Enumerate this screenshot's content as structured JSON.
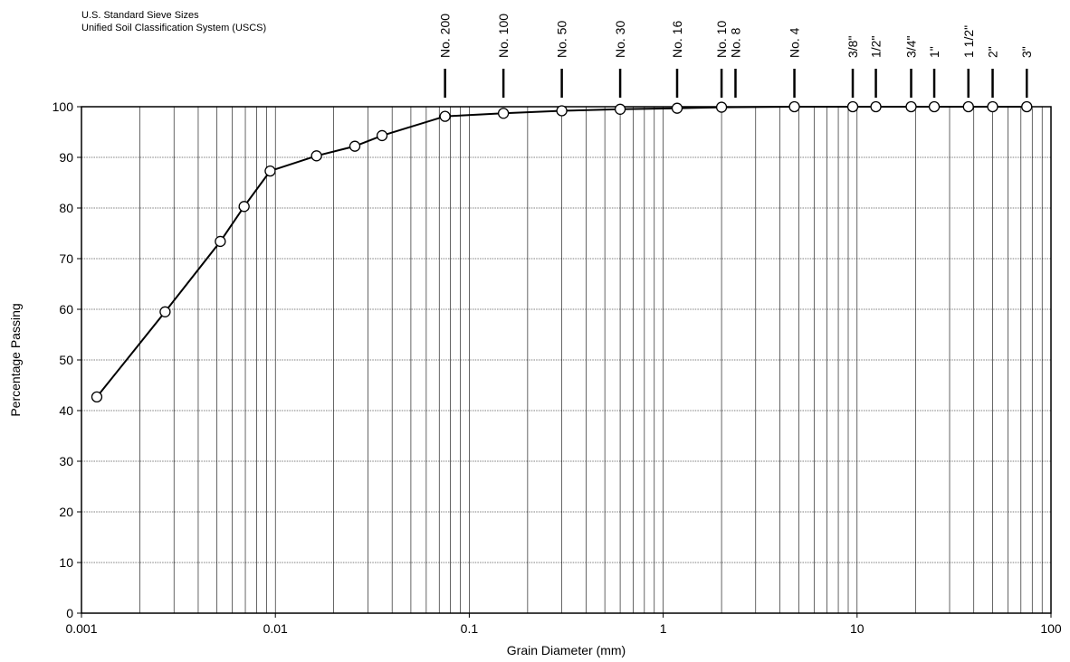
{
  "header": {
    "line1": "U.S. Standard Sieve Sizes",
    "line2": "Unified Soil Classification System (USCS)"
  },
  "chart_data": {
    "type": "line",
    "title": "",
    "xlabel": "Grain Diameter (mm)",
    "ylabel": "Percentage Passing",
    "x_scale": "log",
    "xlim": [
      0.001,
      100
    ],
    "ylim": [
      0,
      100
    ],
    "x_ticks": [
      {
        "value": 0.001,
        "label": "0.001"
      },
      {
        "value": 0.01,
        "label": "0.01"
      },
      {
        "value": 0.1,
        "label": "0.1"
      },
      {
        "value": 1,
        "label": "1"
      },
      {
        "value": 10,
        "label": "10"
      },
      {
        "value": 100,
        "label": "100"
      }
    ],
    "y_ticks": [
      0,
      10,
      20,
      30,
      40,
      50,
      60,
      70,
      80,
      90,
      100
    ],
    "grid": {
      "x_minor": true,
      "y_major": true
    },
    "marker": "open-circle",
    "line_color": "#000000",
    "series": [
      {
        "x": [
          0.0012,
          0.0027,
          0.0052,
          0.0069,
          0.0094,
          0.0163,
          0.0257,
          0.0355,
          0.075,
          0.15,
          0.3,
          0.6,
          1.18,
          2.0,
          4.75,
          9.5,
          12.5,
          19.0,
          25.0,
          37.5,
          50.0,
          75.0
        ],
        "y": [
          42.7,
          59.5,
          73.4,
          80.3,
          87.3,
          90.3,
          92.2,
          94.3,
          98.1,
          98.7,
          99.2,
          99.5,
          99.7,
          99.9,
          100,
          100,
          100,
          100,
          100,
          100,
          100,
          100
        ]
      }
    ],
    "sieves": [
      {
        "label": "No. 200",
        "size": 0.075
      },
      {
        "label": "No. 100",
        "size": 0.15
      },
      {
        "label": "No. 50",
        "size": 0.3
      },
      {
        "label": "No. 30",
        "size": 0.6
      },
      {
        "label": "No. 16",
        "size": 1.18
      },
      {
        "label": "No. 10",
        "size": 2.0
      },
      {
        "label": "No. 8",
        "size": 2.36
      },
      {
        "label": "No. 4",
        "size": 4.75
      },
      {
        "label": "3/8\"",
        "size": 9.5
      },
      {
        "label": "1/2\"",
        "size": 12.5
      },
      {
        "label": "3/4\"",
        "size": 19.0
      },
      {
        "label": "1\"",
        "size": 25.0
      },
      {
        "label": "1 1/2\"",
        "size": 37.5
      },
      {
        "label": "2\"",
        "size": 50.0
      },
      {
        "label": "3\"",
        "size": 75.0
      }
    ]
  }
}
